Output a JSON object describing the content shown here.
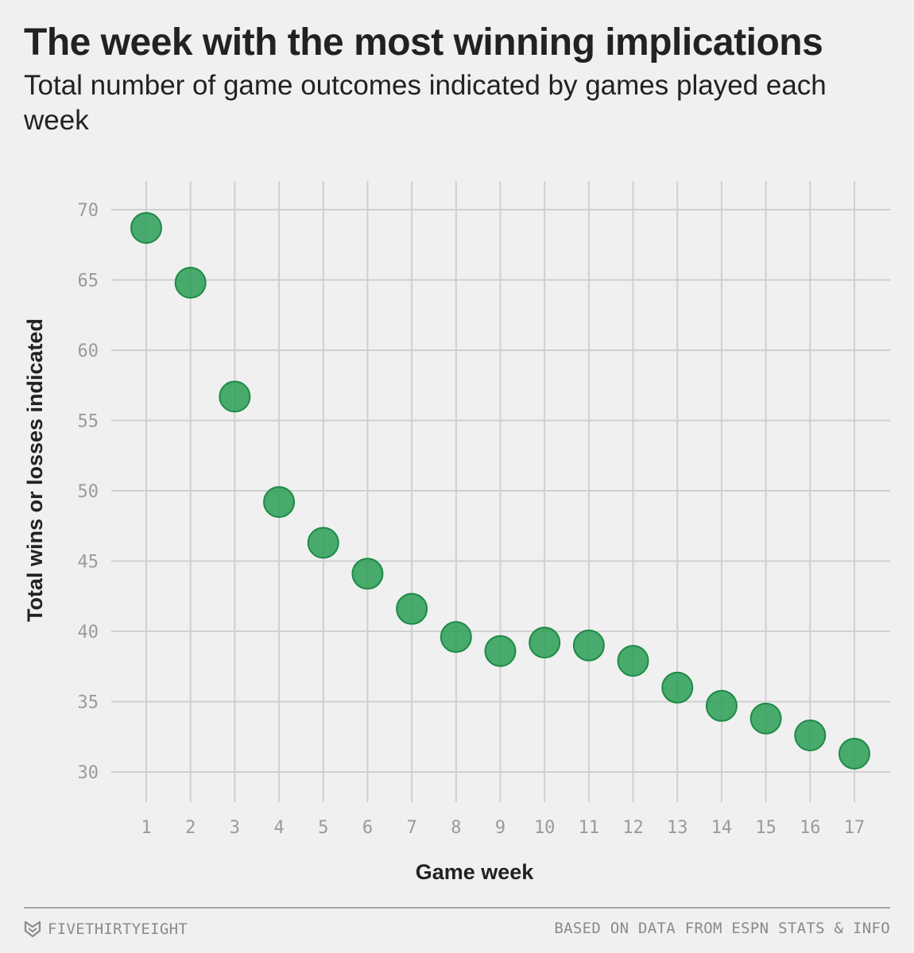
{
  "header": {
    "title": "The week with the most winning implications",
    "subtitle": "Total number of game outcomes indicated by games played each week"
  },
  "footer": {
    "brand": "FIVETHIRTYEIGHT",
    "brand_icon": "fivethirtyeight-logo-icon",
    "source": "BASED ON DATA FROM ESPN STATS & INFO"
  },
  "colors": {
    "background": "#f0f0f0",
    "grid": "#cfcfcf",
    "point_fill": "#2a9d55",
    "point_stroke": "#1e8a47",
    "tick": "#9a9a9a"
  },
  "chart_data": {
    "type": "scatter",
    "title": "The week with the most winning implications",
    "subtitle": "Total number of game outcomes indicated by games played each week",
    "xlabel": "Game week",
    "ylabel": "Total wins or losses indicated",
    "x": [
      1,
      2,
      3,
      4,
      5,
      6,
      7,
      8,
      9,
      10,
      11,
      12,
      13,
      14,
      15,
      16,
      17
    ],
    "y": [
      68.7,
      64.8,
      56.7,
      49.2,
      46.3,
      44.1,
      41.6,
      39.6,
      38.6,
      39.2,
      39.0,
      37.9,
      36.0,
      34.7,
      33.8,
      32.6,
      31.3
    ],
    "xticks": [
      "1",
      "2",
      "3",
      "4",
      "5",
      "6",
      "7",
      "8",
      "9",
      "10",
      "11",
      "12",
      "13",
      "14",
      "15",
      "16",
      "17"
    ],
    "yticks": [
      "30",
      "35",
      "40",
      "45",
      "50",
      "55",
      "60",
      "65",
      "70"
    ],
    "ylim": [
      30,
      70
    ],
    "xlim": [
      1,
      17
    ],
    "grid": true
  }
}
